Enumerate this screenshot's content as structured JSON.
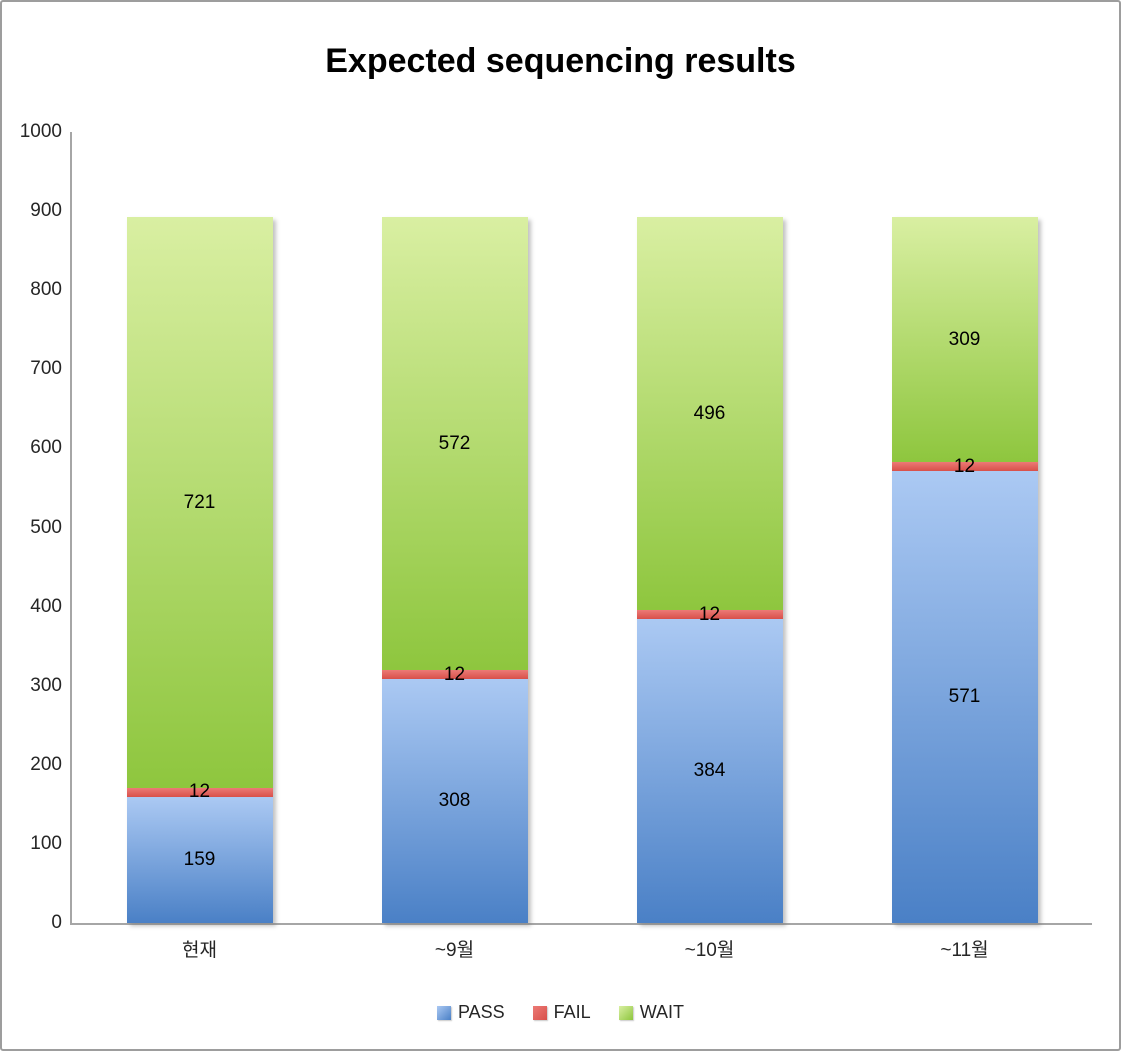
{
  "title": "Expected sequencing results",
  "chart_data": {
    "type": "bar",
    "stacked": true,
    "title": "Expected sequencing results",
    "categories": [
      "현재",
      "~9월",
      "~10월",
      "~11월"
    ],
    "series": [
      {
        "name": "PASS",
        "values": [
          159,
          308,
          384,
          571
        ],
        "color_dark": "#4a80c6",
        "color_light": "#abc9f3"
      },
      {
        "name": "FAIL",
        "values": [
          12,
          12,
          12,
          12
        ],
        "color_dark": "#d8504a",
        "color_light": "#ec7a76"
      },
      {
        "name": "WAIT",
        "values": [
          721,
          572,
          496,
          309
        ],
        "color_dark": "#8ec63e",
        "color_light": "#d9efa2"
      }
    ],
    "xlabel": "",
    "ylabel": "",
    "ylim": [
      0,
      1000
    ],
    "ytick_step": 100,
    "ytick_labels": [
      "0",
      "100",
      "200",
      "300",
      "400",
      "500",
      "600",
      "700",
      "800",
      "900",
      "1000"
    ],
    "grid": false,
    "legend_position": "bottom",
    "legend": [
      "PASS",
      "FAIL",
      "WAIT"
    ],
    "axis_color": "#a6a6a6",
    "label_color": "#000000"
  }
}
